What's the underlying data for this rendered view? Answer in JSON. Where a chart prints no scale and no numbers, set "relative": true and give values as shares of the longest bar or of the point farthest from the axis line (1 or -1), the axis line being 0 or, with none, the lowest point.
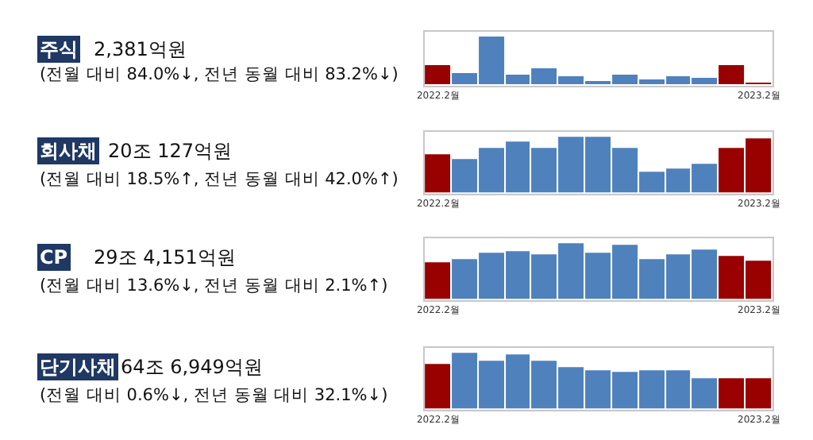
{
  "chart_data": [
    {
      "type": "bar",
      "relative": true,
      "annotations": [
        "주식",
        "2,381억원",
        "(전월 대비 84.0%↓, 전년 동월 대비 83.2%↓)"
      ],
      "categories": [
        "2022.2월",
        null,
        null,
        null,
        null,
        null,
        null,
        null,
        null,
        null,
        null,
        null,
        "2023.2월"
      ],
      "values": [
        0.41,
        0.27,
        1,
        0.21,
        0.36,
        0.2,
        0.1,
        0.21,
        0.13,
        0.18,
        0.16,
        0.43,
        0.07
      ],
      "colors": [
        "#990000",
        "#4f81bd",
        "#4f81bd",
        "#4f81bd",
        "#4f81bd",
        "#4f81bd",
        "#4f81bd",
        "#4f81bd",
        "#4f81bd",
        "#4f81bd",
        "#4f81bd",
        "#990000",
        "#990000"
      ]
    },
    {
      "type": "bar",
      "relative": true,
      "annotations": [
        "회사채",
        "20조 127억원",
        "(전월 대비 18.5%↑, 전년 동월 대비 42.0%↑)"
      ],
      "categories": [
        "2022.2월",
        null,
        null,
        null,
        null,
        null,
        null,
        null,
        null,
        null,
        null,
        null,
        "2023.2월"
      ],
      "values": [
        0.68,
        0.6,
        0.79,
        0.9,
        0.8,
        1,
        0.99,
        0.79,
        0.39,
        0.45,
        0.53,
        0.81,
        0.97
      ],
      "colors": [
        "#990000",
        "#4f81bd",
        "#4f81bd",
        "#4f81bd",
        "#4f81bd",
        "#4f81bd",
        "#4f81bd",
        "#4f81bd",
        "#4f81bd",
        "#4f81bd",
        "#4f81bd",
        "#990000",
        "#990000"
      ]
    },
    {
      "type": "bar",
      "relative": true,
      "annotations": [
        "CP",
        "29조 4,151억원",
        "(전월 대비 13.6%↓, 전년 동월 대비 2.1%↑)"
      ],
      "categories": [
        "2022.2월",
        null,
        null,
        null,
        null,
        null,
        null,
        null,
        null,
        null,
        null,
        null,
        "2023.2월"
      ],
      "values": [
        0.65,
        0.72,
        0.83,
        0.87,
        0.79,
        1,
        0.83,
        0.98,
        0.71,
        0.8,
        0.88,
        0.78,
        0.68
      ],
      "colors": [
        "#990000",
        "#4f81bd",
        "#4f81bd",
        "#4f81bd",
        "#4f81bd",
        "#4f81bd",
        "#4f81bd",
        "#4f81bd",
        "#4f81bd",
        "#4f81bd",
        "#4f81bd",
        "#990000",
        "#990000"
      ]
    },
    {
      "type": "bar",
      "relative": true,
      "annotations": [
        "단기사채",
        "64조 6,949억원",
        "(전월 대비 0.6%↓, 전년 동월 대비 32.1%↓)"
      ],
      "categories": [
        "2022.2월",
        null,
        null,
        null,
        null,
        null,
        null,
        null,
        null,
        null,
        null,
        null,
        "2023.2월"
      ],
      "values": [
        0.8,
        1,
        0.85,
        0.97,
        0.86,
        0.74,
        0.68,
        0.67,
        0.68,
        0.69,
        0.54,
        0.56,
        0.54
      ],
      "colors": [
        "#990000",
        "#4f81bd",
        "#4f81bd",
        "#4f81bd",
        "#4f81bd",
        "#4f81bd",
        "#4f81bd",
        "#4f81bd",
        "#4f81bd",
        "#4f81bd",
        "#4f81bd",
        "#990000",
        "#990000"
      ]
    }
  ]
}
